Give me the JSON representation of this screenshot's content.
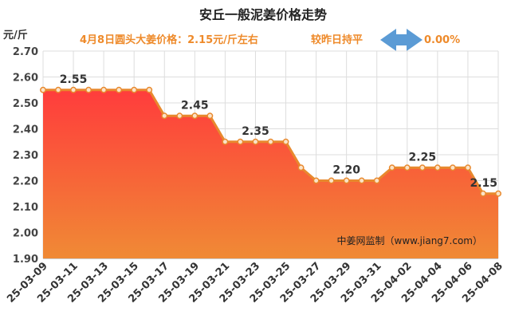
{
  "chart_data": {
    "type": "area",
    "title": "安丘一般泥姜价格走势",
    "subtitle_left": "4月8日圆头大姜价格：2.15元/斤左右",
    "subtitle_right": "较昨日持平",
    "change_value": "0.00%",
    "ylabel": "元/斤",
    "watermark": "中姜网监制（www.jiang7.com）",
    "ylim": [
      1.9,
      2.7
    ],
    "yticks": [
      "2.70",
      "2.60",
      "2.50",
      "2.40",
      "2.30",
      "2.20",
      "2.10",
      "2.00",
      "1.90"
    ],
    "xticks": [
      "25-03-09",
      "25-03-11",
      "25-03-13",
      "25-03-15",
      "25-03-17",
      "25-03-19",
      "25-03-21",
      "25-03-23",
      "25-03-25",
      "25-03-27",
      "25-03-29",
      "25-03-31",
      "25-04-02",
      "25-04-04",
      "25-04-06",
      "25-04-08"
    ],
    "values": [
      2.55,
      2.55,
      2.55,
      2.55,
      2.55,
      2.55,
      2.55,
      2.55,
      2.45,
      2.45,
      2.45,
      2.45,
      2.35,
      2.35,
      2.35,
      2.35,
      2.35,
      2.25,
      2.2,
      2.2,
      2.2,
      2.2,
      2.2,
      2.25,
      2.25,
      2.25,
      2.25,
      2.25,
      2.25,
      2.15,
      2.15
    ],
    "data_labels": [
      {
        "index": 2,
        "text": "2.55"
      },
      {
        "index": 10,
        "text": "2.45"
      },
      {
        "index": 14,
        "text": "2.35"
      },
      {
        "index": 20,
        "text": "2.20"
      },
      {
        "index": 25,
        "text": "2.25"
      },
      {
        "index": 30,
        "text": "2.15"
      }
    ],
    "grid": true,
    "colors": {
      "line": "#e8892e",
      "marker_fill": "#fbe3c8",
      "area_top": "#ff3c3c",
      "area_bottom": "#f08a35",
      "grid": "#dddddd",
      "arrow": "#5b9bd5",
      "subtitle": "#ee8a2a"
    }
  }
}
